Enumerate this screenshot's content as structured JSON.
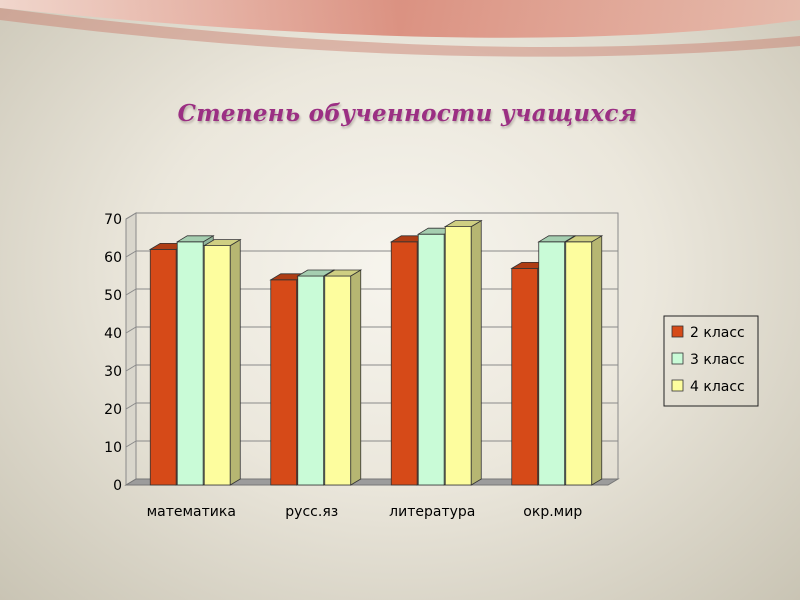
{
  "slide": {
    "title": "Степень обученности  учащихся"
  },
  "chart_data": {
    "type": "bar",
    "title": "",
    "xlabel": "",
    "ylabel": "",
    "categories": [
      "математика",
      "русс.яз",
      "литература",
      "окр.мир"
    ],
    "ylim": [
      0,
      70
    ],
    "yticks": [
      0,
      10,
      20,
      30,
      40,
      50,
      60,
      70
    ],
    "grid": true,
    "legend_position": "right",
    "series": [
      {
        "name": "2 класс",
        "values": [
          62,
          54,
          64,
          57
        ],
        "color": "#d64a18"
      },
      {
        "name": "3 класс",
        "values": [
          64,
          55,
          66,
          64
        ],
        "color": "#c9fbd7"
      },
      {
        "name": "4 класс",
        "values": [
          63,
          55,
          68,
          64
        ],
        "color": "#fdfd9e"
      }
    ]
  }
}
